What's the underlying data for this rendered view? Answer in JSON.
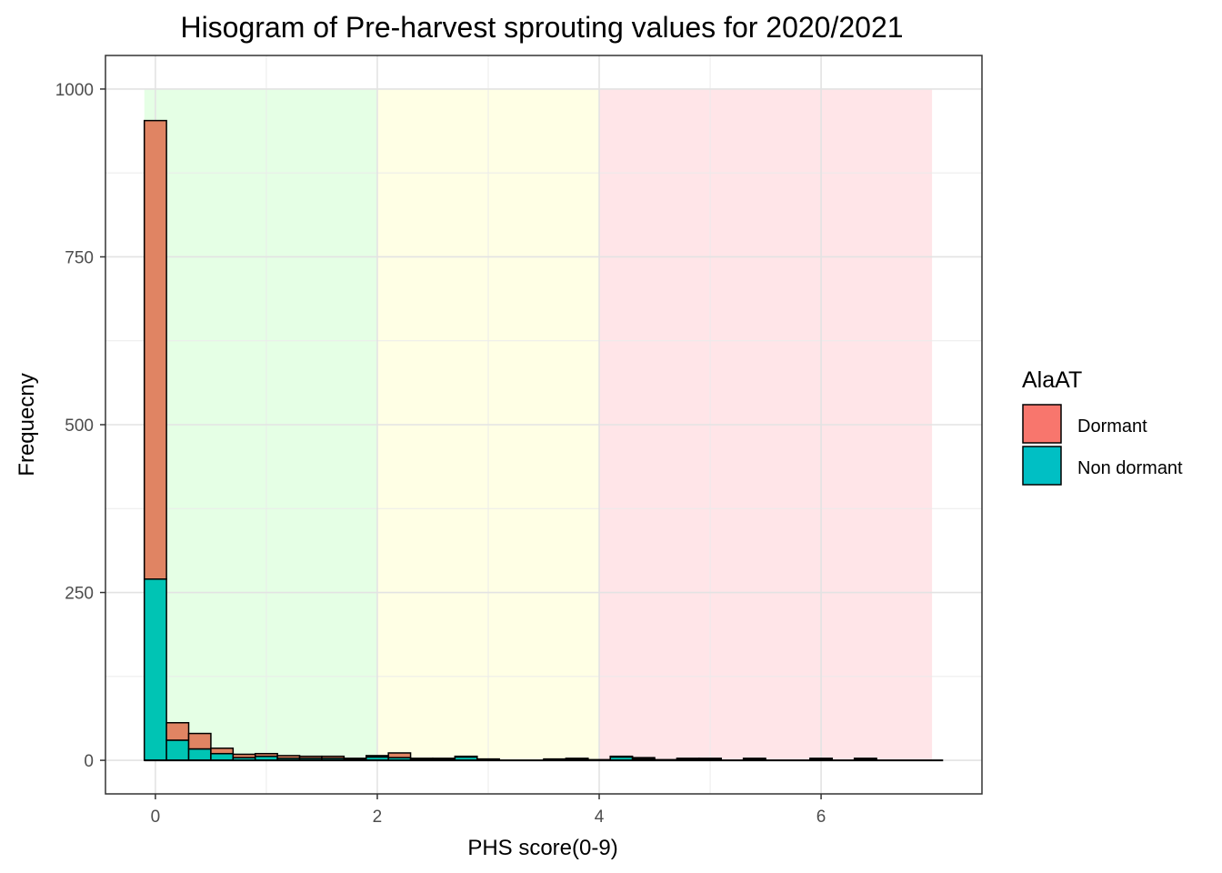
{
  "chart_data": {
    "type": "bar",
    "title": "Hisogram of Pre-harvest sprouting values for 2020/2021",
    "xlabel": "PHS score(0-9)",
    "ylabel": "Frequecny",
    "xlim": [
      -0.45,
      7.45
    ],
    "ylim": [
      -50,
      1050
    ],
    "x_ticks": [
      0,
      2,
      4,
      6
    ],
    "y_ticks": [
      0,
      250,
      500,
      750,
      1000
    ],
    "bin_width": 0.2,
    "bins_x": [
      0,
      0.2,
      0.4,
      0.6,
      0.8,
      1.0,
      1.2,
      1.4,
      1.6,
      1.8,
      2.0,
      2.2,
      2.4,
      2.6,
      2.8,
      3.0,
      3.2,
      3.4,
      3.6,
      3.8,
      4.0,
      4.2,
      4.4,
      4.6,
      4.8,
      5.0,
      5.2,
      5.4,
      5.6,
      5.8,
      6.0,
      6.2,
      6.4,
      6.6,
      6.8,
      7.0
    ],
    "series": [
      {
        "name": "Dormant",
        "color": "#E08463",
        "values": [
          683,
          26,
          23,
          8,
          5,
          4,
          4,
          3,
          3,
          1,
          2,
          7,
          2,
          1,
          1,
          1,
          0,
          0,
          1,
          1,
          0,
          1,
          2,
          1,
          2,
          2,
          0,
          2,
          0,
          0,
          2,
          0,
          2,
          0,
          0,
          0
        ]
      },
      {
        "name": "Non dormant",
        "color": "#00C4B4",
        "values": [
          270,
          30,
          17,
          10,
          4,
          6,
          3,
          3,
          3,
          2,
          5,
          4,
          1,
          2,
          5,
          1,
          0,
          0,
          1,
          2,
          1,
          5,
          2,
          0,
          1,
          1,
          0,
          1,
          0,
          0,
          1,
          0,
          1,
          0,
          0,
          0
        ]
      }
    ],
    "background_bands": [
      {
        "from": -0.1,
        "to": 2,
        "color": "#E5FFE5"
      },
      {
        "from": 2,
        "to": 4,
        "color": "#FFFFE5"
      },
      {
        "from": 4,
        "to": 7,
        "color": "#FFE5E8"
      }
    ],
    "band_top": 1000,
    "grid": true,
    "legend": {
      "title": "AlaAT",
      "position": "right",
      "items": [
        {
          "label": "Dormant",
          "color": "#F8766D"
        },
        {
          "label": "Non dormant",
          "color": "#00BFC4"
        }
      ]
    }
  }
}
